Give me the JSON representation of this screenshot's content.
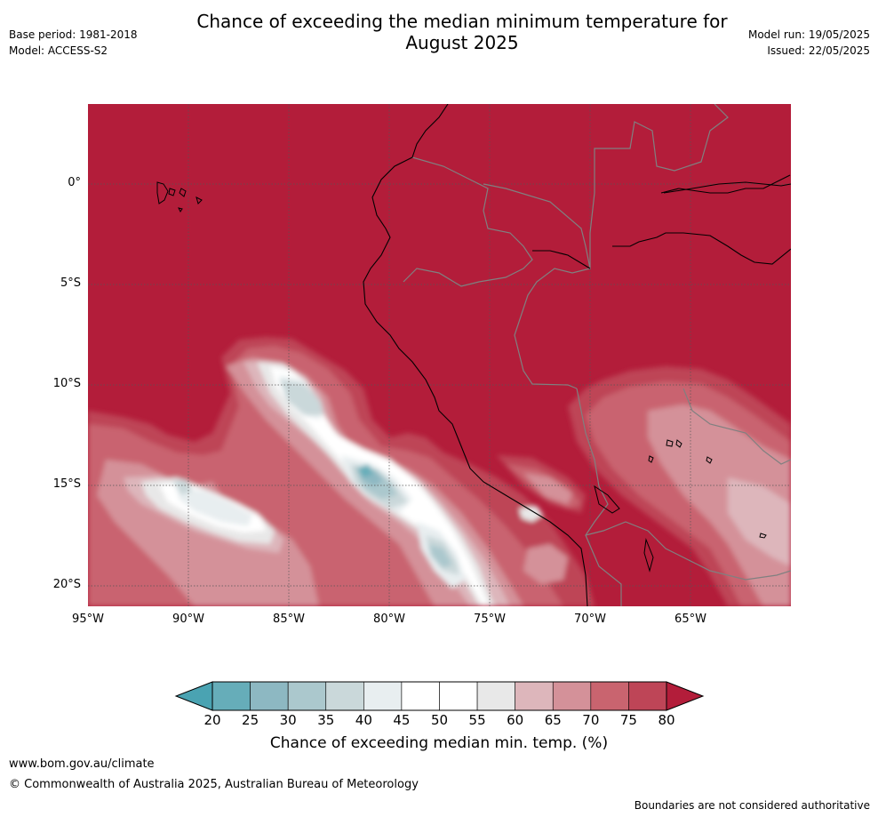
{
  "title_line1": "Chance of exceeding the median minimum temperature for",
  "title_line2": "August 2025",
  "meta_left": {
    "base_period": "Base period: 1981-2018",
    "model": "Model: ACCESS-S2"
  },
  "meta_right": {
    "model_run": "Model run: 19/05/2025",
    "issued": "Issued: 22/05/2025"
  },
  "map": {
    "lat_labels": [
      "0°",
      "5°S",
      "10°S",
      "15°S",
      "20°S"
    ],
    "lat_values": [
      0,
      -5,
      -10,
      -15,
      -20
    ],
    "lon_labels": [
      "95°W",
      "90°W",
      "85°W",
      "80°W",
      "75°W",
      "70°W",
      "65°W"
    ],
    "lon_values": [
      -95,
      -90,
      -85,
      -80,
      -75,
      -70,
      -65
    ],
    "lon_range": [
      -95,
      -60
    ],
    "lat_range": [
      -21,
      4
    ]
  },
  "colorbar": {
    "ticks": [
      "20",
      "25",
      "30",
      "35",
      "40",
      "45",
      "50",
      "55",
      "60",
      "65",
      "70",
      "75",
      "80"
    ],
    "colors": [
      "#66adb9",
      "#8db8c2",
      "#abc8cd",
      "#cad8da",
      "#e8eef0",
      "#ffffff",
      "#ffffff",
      "#e8e8e8",
      "#ddb6bb",
      "#d49199",
      "#c9646f",
      "#be4557"
    ],
    "under_color": "#4aa3b2",
    "over_color": "#b31d3a",
    "label": "Chance of exceeding median min. temp. (%)"
  },
  "footer": {
    "url": "www.bom.gov.au/climate",
    "copyright": "© Commonwealth of Australia 2025, Australian Bureau of Meteorology",
    "disclaimer": "Boundaries are not considered authoritative"
  }
}
